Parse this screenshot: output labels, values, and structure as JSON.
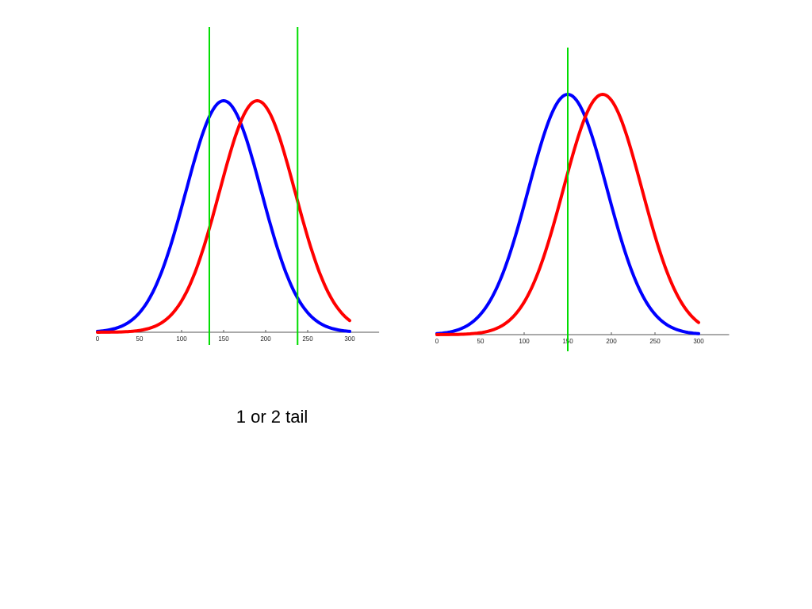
{
  "caption": "1 or 2 tail",
  "colors": {
    "series_a": "#0000ff",
    "series_b": "#ff0000",
    "threshold": "#00dd00",
    "axis": "#555555"
  },
  "chart_data": [
    {
      "type": "line",
      "xlim": [
        0,
        335
      ],
      "xticks": [
        0,
        50,
        100,
        150,
        200,
        250,
        300
      ],
      "grid": false,
      "series": [
        {
          "mean": 150,
          "sd": 45,
          "x_range": [
            0,
            300
          ],
          "color": "#0000ff"
        },
        {
          "mean": 190,
          "sd": 45,
          "x_range": [
            0,
            300
          ],
          "color": "#ff0000"
        }
      ],
      "vertical_lines": [
        133,
        238
      ]
    },
    {
      "type": "line",
      "xlim": [
        0,
        335
      ],
      "xticks": [
        0,
        50,
        100,
        150,
        200,
        250,
        300
      ],
      "grid": false,
      "series": [
        {
          "mean": 150,
          "sd": 45,
          "x_range": [
            0,
            300
          ],
          "color": "#0000ff"
        },
        {
          "mean": 190,
          "sd": 45,
          "x_range": [
            0,
            300
          ],
          "color": "#ff0000"
        }
      ],
      "vertical_lines": [
        150
      ]
    }
  ]
}
